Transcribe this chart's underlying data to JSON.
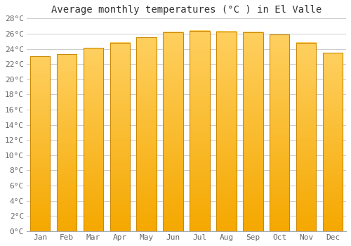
{
  "title": "Average monthly temperatures (°C ) in El Valle",
  "months": [
    "Jan",
    "Feb",
    "Mar",
    "Apr",
    "May",
    "Jun",
    "Jul",
    "Aug",
    "Sep",
    "Oct",
    "Nov",
    "Dec"
  ],
  "values": [
    23.0,
    23.3,
    24.1,
    24.8,
    25.5,
    26.2,
    26.4,
    26.3,
    26.2,
    25.9,
    24.8,
    23.5
  ],
  "bar_color_light": "#FFD060",
  "bar_color_dark": "#F5A800",
  "bar_edge_color": "#CC8800",
  "ylim": [
    0,
    28
  ],
  "yticks": [
    0,
    2,
    4,
    6,
    8,
    10,
    12,
    14,
    16,
    18,
    20,
    22,
    24,
    26,
    28
  ],
  "background_color": "#ffffff",
  "grid_color": "#cccccc",
  "title_fontsize": 10,
  "tick_fontsize": 8,
  "bar_width": 0.75
}
